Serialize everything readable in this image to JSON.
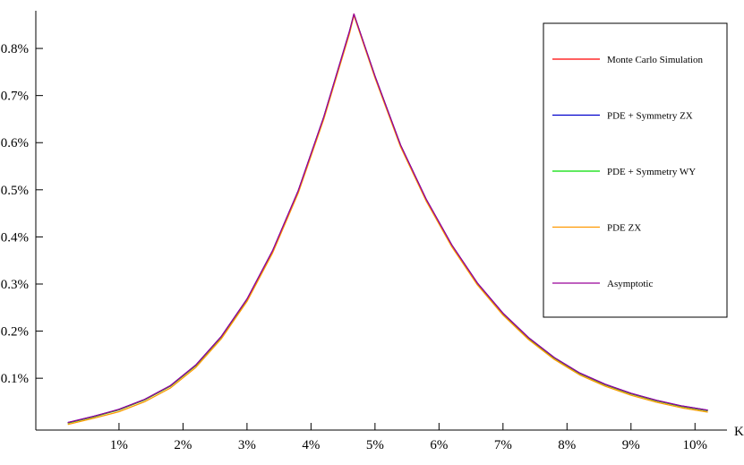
{
  "chart_data": {
    "type": "line",
    "title": "",
    "xlabel": "K",
    "ylabel": "",
    "xlim": [
      -0.3,
      10.5
    ],
    "ylim": [
      -0.01,
      0.88
    ],
    "x_ticks": [
      1,
      2,
      3,
      4,
      5,
      6,
      7,
      8,
      9,
      10
    ],
    "x_tick_labels": [
      "1%",
      "2%",
      "3%",
      "4%",
      "5%",
      "6%",
      "7%",
      "8%",
      "9%",
      "10%"
    ],
    "y_ticks": [
      0.1,
      0.2,
      0.3,
      0.4,
      0.5,
      0.6,
      0.7,
      0.8
    ],
    "y_tick_labels": [
      "0.1%",
      "0.2%",
      "0.3%",
      "0.4%",
      "0.5%",
      "0.6%",
      "0.7%",
      "0.8%"
    ],
    "legend_position": "top-right",
    "grid": false,
    "x": [
      0.2,
      0.6,
      1.0,
      1.4,
      1.8,
      2.2,
      2.6,
      3.0,
      3.4,
      3.8,
      4.2,
      4.6,
      4.67,
      5.0,
      5.4,
      5.8,
      6.2,
      6.6,
      7.0,
      7.4,
      7.8,
      8.2,
      8.6,
      9.0,
      9.4,
      9.8,
      10.2
    ],
    "series": [
      {
        "name": "Monte Carlo Simulation",
        "color": "#ff0000",
        "values": [
          0.005,
          0.018,
          0.033,
          0.054,
          0.083,
          0.127,
          0.188,
          0.267,
          0.37,
          0.497,
          0.654,
          0.835,
          0.873,
          0.74,
          0.594,
          0.479,
          0.382,
          0.301,
          0.237,
          0.185,
          0.143,
          0.11,
          0.086,
          0.067,
          0.052,
          0.04,
          0.031
        ]
      },
      {
        "name": "PDE + Symmetry ZX",
        "color": "#0000cc",
        "values": [
          0.006,
          0.019,
          0.034,
          0.055,
          0.084,
          0.128,
          0.189,
          0.268,
          0.371,
          0.498,
          0.655,
          0.836,
          0.872,
          0.741,
          0.595,
          0.48,
          0.383,
          0.302,
          0.238,
          0.186,
          0.144,
          0.111,
          0.087,
          0.068,
          0.053,
          0.041,
          0.032
        ]
      },
      {
        "name": "PDE + Symmetry WY",
        "color": "#00dd00",
        "values": [
          0.005,
          0.018,
          0.033,
          0.054,
          0.083,
          0.127,
          0.188,
          0.267,
          0.37,
          0.497,
          0.654,
          0.835,
          0.872,
          0.74,
          0.594,
          0.479,
          0.382,
          0.301,
          0.237,
          0.185,
          0.143,
          0.11,
          0.086,
          0.067,
          0.052,
          0.04,
          0.031
        ]
      },
      {
        "name": "PDE ZX",
        "color": "#ff9900",
        "values": [
          0.002,
          0.015,
          0.029,
          0.05,
          0.079,
          0.123,
          0.184,
          0.263,
          0.366,
          0.493,
          0.65,
          0.831,
          0.87,
          0.737,
          0.591,
          0.476,
          0.379,
          0.298,
          0.234,
          0.182,
          0.14,
          0.107,
          0.083,
          0.064,
          0.049,
          0.037,
          0.028
        ]
      },
      {
        "name": "Asymptotic",
        "color": "#990099",
        "values": [
          0.006,
          0.019,
          0.034,
          0.055,
          0.084,
          0.128,
          0.189,
          0.268,
          0.371,
          0.498,
          0.655,
          0.836,
          0.873,
          0.741,
          0.595,
          0.48,
          0.383,
          0.302,
          0.238,
          0.186,
          0.144,
          0.111,
          0.087,
          0.068,
          0.053,
          0.041,
          0.032
        ]
      }
    ]
  }
}
